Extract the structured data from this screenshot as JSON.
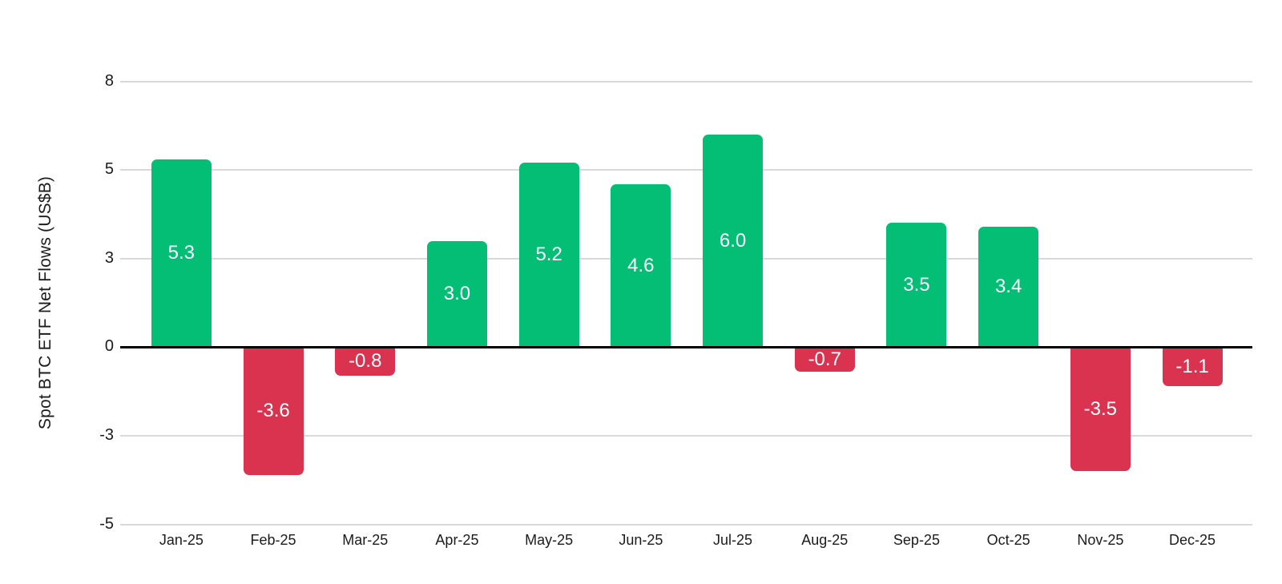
{
  "chart_data": {
    "type": "bar",
    "title": "",
    "xlabel": "",
    "ylabel": "Spot BTC ETF Net Flows (US$B)",
    "categories": [
      "Jan-25",
      "Feb-25",
      "Mar-25",
      "Apr-25",
      "May-25",
      "Jun-25",
      "Jul-25",
      "Aug-25",
      "Sep-25",
      "Oct-25",
      "Nov-25",
      "Dec-25"
    ],
    "values": [
      5.3,
      -3.6,
      -0.8,
      3.0,
      5.2,
      4.6,
      6.0,
      -0.7,
      3.5,
      3.4,
      -3.5,
      -1.1
    ],
    "bar_labels": [
      "5.3",
      "-3.6",
      "-0.8",
      "3.0",
      "5.2",
      "4.6",
      "6.0",
      "-0.7",
      "3.5",
      "3.4",
      "-3.5",
      "-1.1"
    ],
    "ytick_labels": [
      "8",
      "5",
      "3",
      "0",
      "-3",
      "-5"
    ],
    "ytick_values": [
      7.5,
      5,
      2.5,
      0,
      -2.5,
      -5
    ],
    "ylim": [
      -5.5,
      8.2
    ],
    "grid": "horizontal",
    "legend": "none",
    "colors": {
      "positive": "#03BE74",
      "negative": "#D93350",
      "gridline": "#D9D9D9",
      "zero_line": "#000000",
      "bar_label_text": "#FFFFFF",
      "axis_text": "#1B1B1B",
      "background": "#FFFFFF"
    }
  }
}
